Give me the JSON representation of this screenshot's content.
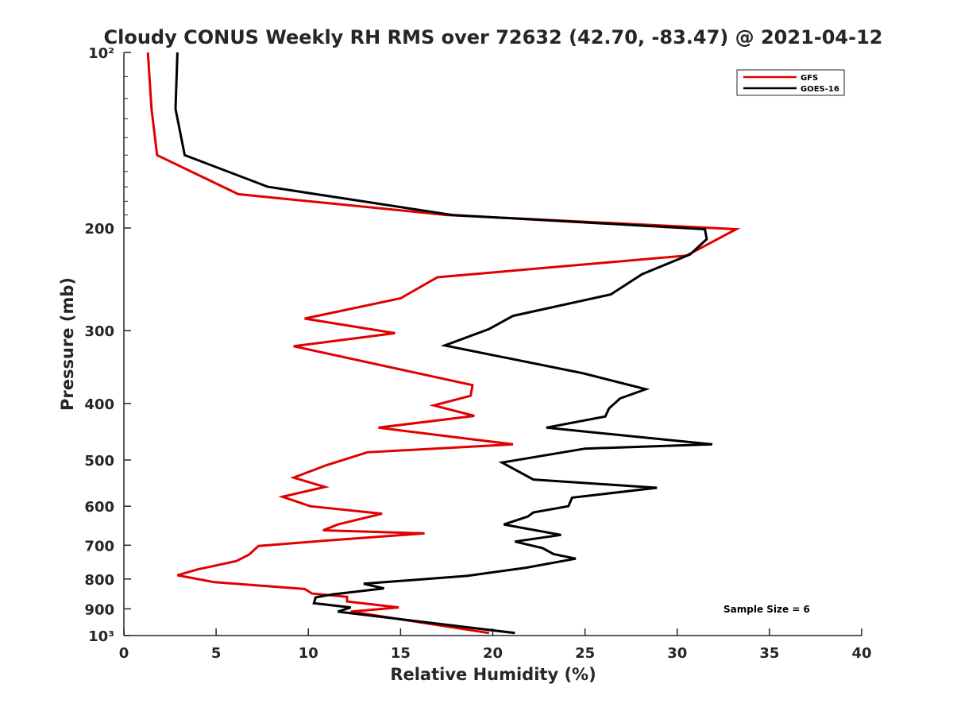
{
  "chart_data": {
    "type": "line",
    "title": "Cloudy CONUS Weekly RH RMS over 72632 (42.70, -83.47) @ 2021-04-12",
    "xlabel": "Relative Humidity (%)",
    "ylabel": "Pressure (mb)",
    "xlim": [
      0,
      40
    ],
    "ylim": [
      100,
      1000
    ],
    "y_scale": "log",
    "y_reversed": true,
    "x_ticks": [
      0,
      5,
      10,
      15,
      20,
      25,
      30,
      35,
      40
    ],
    "x_tick_labels": [
      "0",
      "5",
      "10",
      "15",
      "20",
      "25",
      "30",
      "35",
      "40"
    ],
    "y_ticks": [
      100,
      200,
      300,
      400,
      500,
      600,
      700,
      800,
      900,
      1000
    ],
    "y_tick_labels": [
      "10²",
      "200",
      "300",
      "400",
      "500",
      "600",
      "700",
      "800",
      "900",
      "10³"
    ],
    "grid": false,
    "legend_position": "top-right",
    "annotation": "Sample Size = 6",
    "series": [
      {
        "name": "GFS",
        "color": "#e00000",
        "points": [
          [
            1.3,
            100
          ],
          [
            1.5,
            125
          ],
          [
            1.8,
            150
          ],
          [
            6.2,
            175
          ],
          [
            17.5,
            190
          ],
          [
            33.2,
            201
          ],
          [
            30.5,
            223
          ],
          [
            17.0,
            243
          ],
          [
            15.0,
            264
          ],
          [
            9.8,
            286
          ],
          [
            14.7,
            303
          ],
          [
            9.2,
            319
          ],
          [
            18.9,
            372
          ],
          [
            18.8,
            388
          ],
          [
            16.8,
            403
          ],
          [
            19.0,
            420
          ],
          [
            13.8,
            440
          ],
          [
            21.1,
            470
          ],
          [
            13.2,
            485
          ],
          [
            11.0,
            510
          ],
          [
            9.2,
            536
          ],
          [
            10.9,
            556
          ],
          [
            8.6,
            578
          ],
          [
            10.1,
            600
          ],
          [
            14.0,
            618
          ],
          [
            11.6,
            645
          ],
          [
            10.8,
            660
          ],
          [
            16.3,
            668
          ],
          [
            10.8,
            688
          ],
          [
            7.3,
            702
          ],
          [
            6.8,
            726
          ],
          [
            6.1,
            745
          ],
          [
            4.0,
            770
          ],
          [
            2.9,
            788
          ],
          [
            4.9,
            810
          ],
          [
            9.8,
            832
          ],
          [
            10.2,
            847
          ],
          [
            12.1,
            858
          ],
          [
            12.1,
            874
          ],
          [
            14.9,
            895
          ],
          [
            12.3,
            910
          ],
          [
            19.8,
            990
          ]
        ]
      },
      {
        "name": "GOES-16",
        "color": "#000000",
        "points": [
          [
            2.9,
            100
          ],
          [
            2.8,
            125
          ],
          [
            3.3,
            150
          ],
          [
            7.8,
            170
          ],
          [
            17.8,
            190
          ],
          [
            31.5,
            201
          ],
          [
            31.6,
            209
          ],
          [
            30.7,
            222
          ],
          [
            28.1,
            240
          ],
          [
            26.4,
            260
          ],
          [
            21.1,
            283
          ],
          [
            19.8,
            298
          ],
          [
            17.4,
            318
          ],
          [
            24.9,
            355
          ],
          [
            28.3,
            378
          ],
          [
            26.9,
            392
          ],
          [
            26.3,
            408
          ],
          [
            26.1,
            421
          ],
          [
            22.9,
            440
          ],
          [
            31.9,
            470
          ],
          [
            25.0,
            478
          ],
          [
            20.5,
            505
          ],
          [
            22.2,
            540
          ],
          [
            28.9,
            558
          ],
          [
            24.3,
            580
          ],
          [
            24.1,
            600
          ],
          [
            22.2,
            615
          ],
          [
            21.9,
            625
          ],
          [
            20.6,
            645
          ],
          [
            23.7,
            672
          ],
          [
            21.2,
            690
          ],
          [
            22.7,
            708
          ],
          [
            23.3,
            725
          ],
          [
            24.5,
            738
          ],
          [
            21.8,
            765
          ],
          [
            18.6,
            790
          ],
          [
            13.0,
            815
          ],
          [
            14.1,
            830
          ],
          [
            11.3,
            850
          ],
          [
            10.4,
            860
          ],
          [
            10.3,
            880
          ],
          [
            12.3,
            895
          ],
          [
            11.6,
            910
          ],
          [
            21.2,
            990
          ]
        ]
      }
    ]
  }
}
